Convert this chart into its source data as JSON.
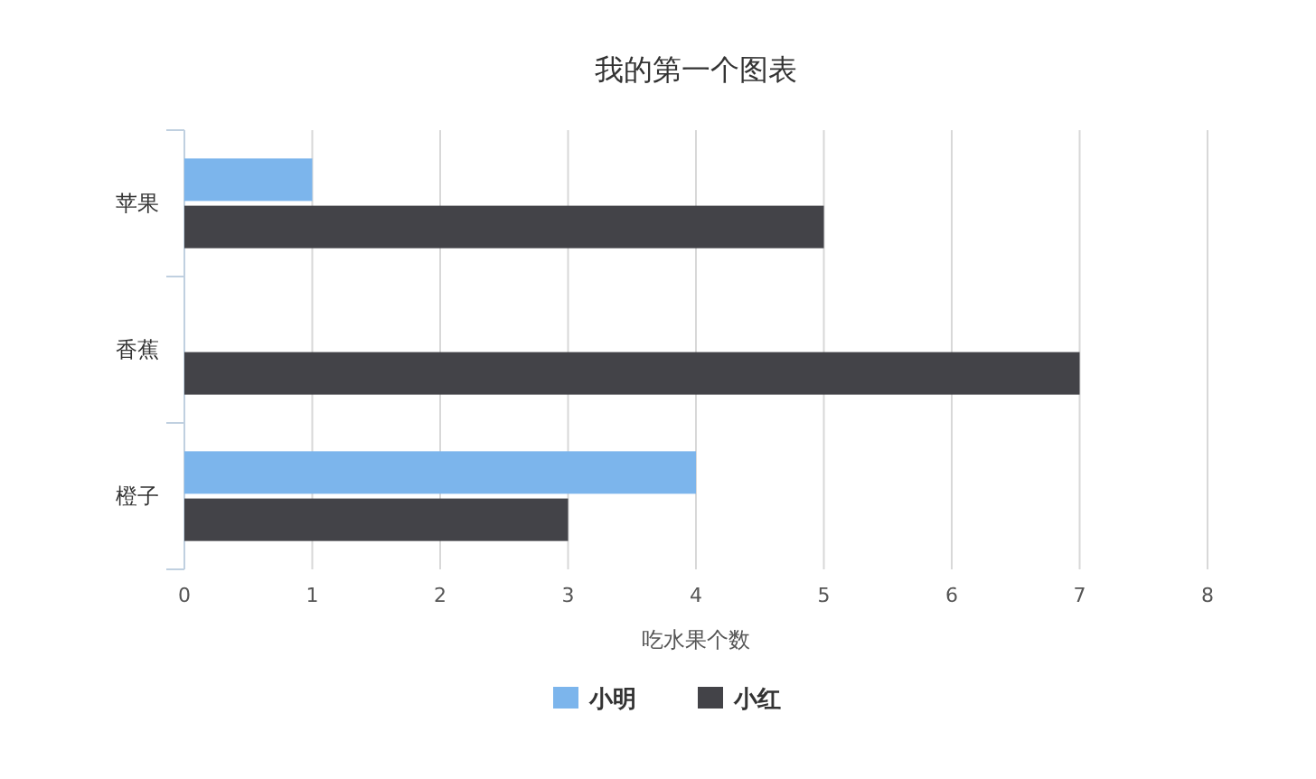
{
  "chart_data": {
    "type": "bar",
    "orientation": "horizontal",
    "title": "我的第一个图表",
    "xlabel": "吃水果个数",
    "categories": [
      "苹果",
      "香蕉",
      "橙子"
    ],
    "series": [
      {
        "name": "小明",
        "color": "#7cb5ec",
        "values": [
          1,
          0,
          4
        ]
      },
      {
        "name": "小红",
        "color": "#434348",
        "values": [
          5,
          7,
          3
        ]
      }
    ],
    "xlim": [
      0,
      8
    ],
    "xticks": [
      0,
      1,
      2,
      3,
      4,
      5,
      6,
      7,
      8
    ],
    "grid": "x",
    "legend": "bottom"
  }
}
